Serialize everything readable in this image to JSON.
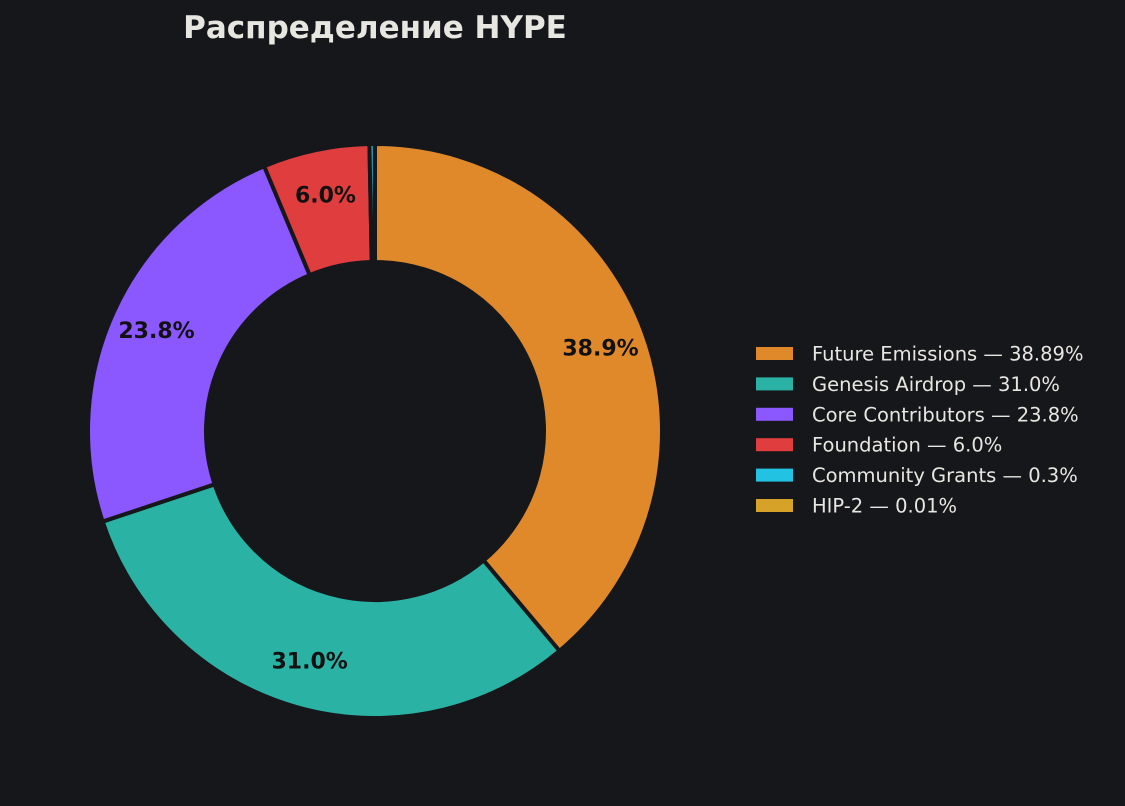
{
  "chart_data": {
    "type": "pie",
    "variant": "donut",
    "title": "Распределение HYPE",
    "slices": [
      {
        "name": "Future Emissions",
        "value": 38.89,
        "pct_label": "38.9%",
        "legend_label": "Future Emissions — 38.89%",
        "color": "#e0892b"
      },
      {
        "name": "Genesis Airdrop",
        "value": 31.0,
        "pct_label": "31.0%",
        "legend_label": "Genesis Airdrop — 31.0%",
        "color": "#2ab3a4"
      },
      {
        "name": "Core Contributors",
        "value": 23.8,
        "pct_label": "23.8%",
        "legend_label": "Core Contributors — 23.8%",
        "color": "#8b57ff"
      },
      {
        "name": "Foundation",
        "value": 6.0,
        "pct_label": "6.0%",
        "legend_label": "Foundation — 6.0%",
        "color": "#e03e3e"
      },
      {
        "name": "Community Grants",
        "value": 0.3,
        "pct_label": "",
        "legend_label": "Community Grants — 0.3%",
        "color": "#22c2e2"
      },
      {
        "name": "HIP-2",
        "value": 0.01,
        "pct_label": "",
        "legend_label": "HIP-2 — 0.01%",
        "color": "#d6a228"
      }
    ],
    "start_angle": "top",
    "direction": "clockwise",
    "legend_position": "right",
    "background": "#16171b",
    "edge_color": "#16171b"
  }
}
